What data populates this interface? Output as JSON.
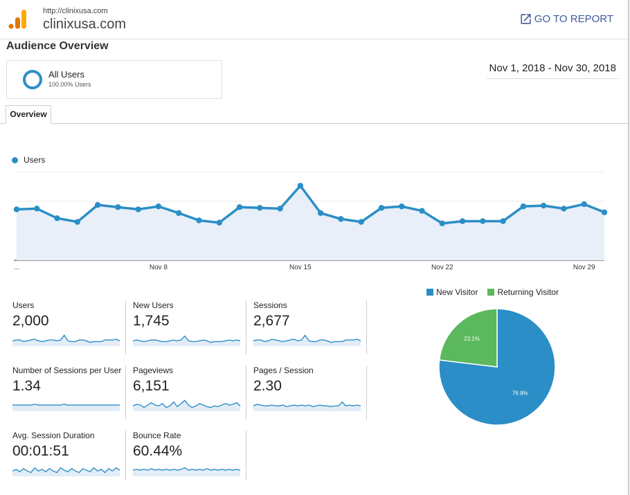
{
  "header": {
    "site_url": "http://clinixusa.com",
    "site_name": "clinixusa.com",
    "goto_label": "GO TO REPORT",
    "goto_icon": "open-in-new-icon",
    "logo_icon": "analytics-logo-icon"
  },
  "report": {
    "title": "Audience Overview",
    "segment_name": "All Users",
    "segment_pct": "100.00% Users",
    "date_range": "Nov 1, 2018 - Nov 30, 2018",
    "tab": "Overview"
  },
  "colors": {
    "accent": "#2b8ec6",
    "green": "#5cb85c",
    "link": "#3e5b9a"
  },
  "chart_data": [
    {
      "type": "line",
      "legend": "Users",
      "x_ticks": [
        "...",
        "Nov 8",
        "Nov 15",
        "Nov 22",
        "Nov 29"
      ],
      "x_tick_days": [
        1,
        8,
        15,
        22,
        29
      ],
      "x": [
        1,
        2,
        3,
        4,
        5,
        6,
        7,
        8,
        9,
        10,
        11,
        12,
        13,
        14,
        15,
        16,
        17,
        18,
        19,
        20,
        21,
        22,
        23,
        24,
        25,
        26,
        27,
        28,
        29,
        30
      ],
      "series": [
        {
          "name": "Users",
          "values": [
            69,
            70,
            57,
            52,
            75,
            72,
            69,
            73,
            64,
            54,
            51,
            72,
            71,
            70,
            101,
            64,
            56,
            52,
            71,
            73,
            67,
            50,
            53,
            53,
            53,
            73,
            74,
            70,
            76,
            65
          ]
        }
      ],
      "ylim": [
        0,
        120
      ],
      "grid": true
    },
    {
      "type": "pie",
      "legend": [
        "New Visitor",
        "Returning Visitor"
      ],
      "values": [
        76.9,
        23.1
      ],
      "labels": [
        "76.9%",
        "23.1%"
      ],
      "colors": [
        "#2b8ec6",
        "#5cb85c"
      ],
      "legend_position": "top"
    }
  ],
  "metrics": [
    {
      "label": "Users",
      "value": "2,000",
      "spark": [
        5,
        6,
        6,
        4,
        5,
        6,
        7,
        5,
        4,
        5,
        6,
        6,
        5,
        6,
        12,
        5,
        4,
        4,
        6,
        6,
        5,
        3,
        4,
        4,
        4,
        6,
        6,
        6,
        7,
        5
      ]
    },
    {
      "label": "New Users",
      "value": "1,745",
      "spark": [
        5,
        6,
        5,
        4,
        5,
        6,
        6,
        5,
        4,
        4,
        5,
        6,
        5,
        6,
        11,
        5,
        4,
        4,
        5,
        6,
        5,
        3,
        4,
        4,
        4,
        5,
        6,
        5,
        6,
        5
      ]
    },
    {
      "label": "Sessions",
      "value": "2,677",
      "spark": [
        5,
        6,
        6,
        4,
        5,
        7,
        6,
        5,
        4,
        5,
        6,
        7,
        5,
        6,
        12,
        5,
        4,
        4,
        6,
        6,
        5,
        3,
        4,
        4,
        4,
        6,
        6,
        6,
        7,
        5
      ]
    },
    {
      "label": "Number of Sessions per User",
      "value": "1.34",
      "spark": [
        6,
        6,
        6,
        6,
        6,
        6,
        7,
        6,
        6,
        6,
        6,
        6,
        6,
        6,
        7,
        6,
        6,
        6,
        6,
        6,
        6,
        6,
        6,
        6,
        6,
        6,
        6,
        6,
        6,
        6
      ]
    },
    {
      "label": "Pageviews",
      "value": "6,151",
      "spark": [
        5,
        7,
        6,
        3,
        6,
        9,
        6,
        5,
        8,
        3,
        5,
        10,
        4,
        8,
        12,
        6,
        3,
        5,
        8,
        6,
        4,
        3,
        5,
        4,
        6,
        8,
        6,
        7,
        9,
        5
      ]
    },
    {
      "label": "Pages / Session",
      "value": "2.30",
      "spark": [
        5,
        7,
        6,
        5,
        5,
        6,
        5,
        5,
        6,
        4,
        5,
        6,
        5,
        6,
        5,
        6,
        4,
        5,
        6,
        5,
        5,
        4,
        5,
        5,
        10,
        5,
        6,
        5,
        6,
        5
      ]
    },
    {
      "label": "Avg. Session Duration",
      "value": "00:01:51",
      "spark": [
        5,
        7,
        4,
        8,
        5,
        3,
        9,
        5,
        7,
        4,
        8,
        5,
        3,
        9,
        6,
        4,
        8,
        5,
        3,
        8,
        6,
        4,
        9,
        5,
        7,
        3,
        8,
        5,
        9,
        6
      ]
    },
    {
      "label": "Bounce Rate",
      "value": "60.44%",
      "spark": [
        6,
        7,
        6,
        7,
        6,
        8,
        6,
        7,
        6,
        7,
        6,
        7,
        6,
        7,
        9,
        6,
        7,
        6,
        7,
        6,
        8,
        6,
        7,
        6,
        7,
        6,
        7,
        6,
        7,
        6
      ]
    }
  ]
}
